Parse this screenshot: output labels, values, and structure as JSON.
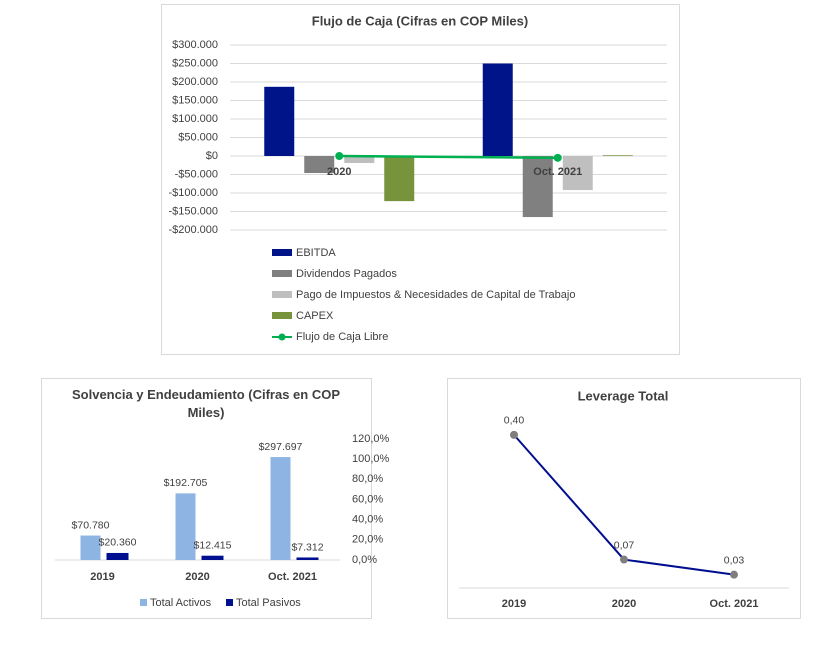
{
  "chart_data": [
    {
      "type": "bar",
      "title": "Flujo de Caja (Cifras en COP Miles)",
      "categories": [
        "2020",
        "Oct. 2021"
      ],
      "series": [
        {
          "name": "EBITDA",
          "color": "#001489",
          "values": [
            187000,
            250000
          ]
        },
        {
          "name": "Dividendos Pagados",
          "color": "#808080",
          "values": [
            -46000,
            -165000
          ]
        },
        {
          "name": "Pago de Impuestos & Necesidades de Capital de Trabajo",
          "color": "#bfbfbf",
          "values": [
            -19000,
            -92000
          ]
        },
        {
          "name": "CAPEX",
          "color": "#77933c",
          "values": [
            -122000,
            2000
          ]
        },
        {
          "name": "Flujo de Caja Libre",
          "color": "#00b050",
          "type": "line",
          "values": [
            0,
            -5000
          ]
        }
      ],
      "ylim": [
        -200000,
        300000
      ],
      "yticks": [
        {
          "value": 300000,
          "label": "$300.000"
        },
        {
          "value": 250000,
          "label": "$250.000"
        },
        {
          "value": 200000,
          "label": "$200.000"
        },
        {
          "value": 150000,
          "label": "$150.000"
        },
        {
          "value": 100000,
          "label": "$100.000"
        },
        {
          "value": 50000,
          "label": "$50.000"
        },
        {
          "value": 0,
          "label": "$0"
        },
        {
          "value": -50000,
          "label": "-$50.000"
        },
        {
          "value": -100000,
          "label": "-$100.000"
        },
        {
          "value": -150000,
          "label": "-$150.000"
        },
        {
          "value": -200000,
          "label": "-$200.000"
        }
      ],
      "grid": true,
      "legend": "bottom"
    },
    {
      "type": "bar",
      "title": "Solvencia y Endeudamiento  (Cifras en COP Miles)",
      "categories": [
        "2019",
        "2020",
        "Oct. 2021"
      ],
      "series": [
        {
          "name": "Total Activos",
          "color": "#8eb4e3",
          "values": [
            70780,
            192705,
            297697
          ],
          "value_labels": [
            "$70.780",
            "$192.705",
            "$297.697"
          ]
        },
        {
          "name": "Total Pasivos",
          "color": "#000f8f",
          "values": [
            20360,
            12415,
            7312
          ],
          "value_labels": [
            "$20.360",
            "$12.415",
            "$7.312"
          ]
        }
      ],
      "ylim": [
        0,
        350000
      ],
      "y2lim": [
        0,
        120
      ],
      "y2ticks": [
        {
          "value": 120,
          "label": "120,0%"
        },
        {
          "value": 100,
          "label": "100,0%"
        },
        {
          "value": 80,
          "label": "80,0%"
        },
        {
          "value": 60,
          "label": "60,0%"
        },
        {
          "value": 40,
          "label": "40,0%"
        },
        {
          "value": 20,
          "label": "20,0%"
        },
        {
          "value": 0,
          "label": "0,0%"
        }
      ],
      "legend": "bottom"
    },
    {
      "type": "line",
      "title": "Leverage Total",
      "categories": [
        "2019",
        "2020",
        "Oct. 2021"
      ],
      "series": [
        {
          "name": "Leverage Total",
          "color": "#000f8f",
          "marker_color": "#7f7f7f",
          "values": [
            0.4,
            0.07,
            0.03
          ],
          "value_labels": [
            "0,40",
            "0,07",
            "0,03"
          ]
        }
      ],
      "ylim": [
        0,
        0.45
      ]
    }
  ]
}
